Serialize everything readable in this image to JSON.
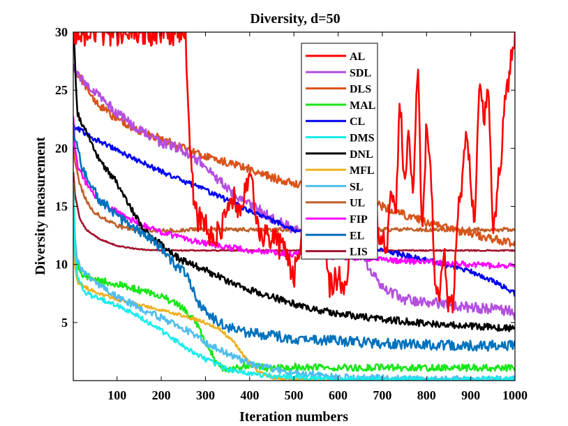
{
  "chart_data": {
    "type": "line",
    "title": "Diversity, d=50",
    "xlabel": "Iteration numbers",
    "ylabel": "Diversity measurement",
    "xlim": [
      1,
      1000
    ],
    "ylim": [
      0,
      30
    ],
    "xticks": [
      100,
      200,
      300,
      400,
      500,
      600,
      700,
      800,
      900,
      1000
    ],
    "yticks": [
      5,
      10,
      15,
      20,
      25,
      30
    ],
    "legend_position": "top-right (inside)",
    "series": [
      {
        "name": "AL",
        "color": "#ff0000",
        "noise": 1.2,
        "x": [
          1,
          30,
          80,
          110,
          140,
          160,
          180,
          200,
          220,
          240,
          255,
          265,
          270,
          280,
          300,
          320,
          340,
          360,
          380,
          400,
          420,
          440,
          460,
          480,
          500,
          520,
          540,
          560,
          580,
          600,
          620,
          640,
          660,
          680,
          690,
          700,
          710,
          720,
          730,
          740,
          750,
          760,
          770,
          780,
          790,
          800,
          810,
          820,
          830,
          840,
          850,
          860,
          870,
          880,
          890,
          900,
          910,
          920,
          930,
          940,
          950,
          960,
          970,
          980,
          990,
          1000
        ],
        "y": [
          30,
          30,
          30,
          30,
          30,
          30,
          30,
          30,
          30,
          30,
          30,
          20,
          17,
          14,
          13.5,
          12,
          13.5,
          16,
          14,
          18,
          13,
          12.5,
          12,
          11,
          9,
          12,
          13,
          18,
          8,
          9,
          8,
          19,
          14,
          21,
          12,
          13,
          10,
          17,
          14,
          24,
          17,
          22,
          15,
          27.5,
          12,
          22,
          18,
          8,
          7,
          11,
          6.5,
          7,
          14,
          17,
          22,
          17,
          13,
          27,
          22,
          25,
          13,
          16,
          20,
          25,
          27,
          30
        ]
      },
      {
        "name": "SDL",
        "color": "#b44fe0",
        "noise": 0.45,
        "x": [
          1,
          10,
          30,
          60,
          100,
          150,
          200,
          250,
          300,
          350,
          400,
          450,
          500,
          550,
          600,
          650,
          700,
          750,
          800,
          850,
          900,
          950,
          990,
          1000
        ],
        "y": [
          27,
          26.5,
          25.5,
          24.5,
          23,
          21.5,
          20.5,
          19.8,
          18.5,
          16.5,
          15.2,
          14,
          13,
          12.5,
          12,
          11,
          8,
          7,
          6.8,
          6.5,
          6.3,
          6.2,
          6,
          5.5
        ]
      },
      {
        "name": "DLS",
        "color": "#d95319",
        "noise": 0.35,
        "x": [
          1,
          10,
          50,
          100,
          150,
          200,
          250,
          300,
          350,
          400,
          450,
          500,
          550,
          600,
          650,
          700,
          750,
          800,
          850,
          900,
          950,
          1000
        ],
        "y": [
          27,
          26.5,
          24,
          22.5,
          21.5,
          20.8,
          20,
          19.3,
          18.8,
          18.2,
          17.5,
          17,
          16.7,
          16.2,
          15.6,
          15,
          14.3,
          13.6,
          13.1,
          12.6,
          12.2,
          11.8
        ]
      },
      {
        "name": "MAL",
        "color": "#19e619",
        "noise": 0.3,
        "x": [
          1,
          5,
          10,
          20,
          50,
          100,
          150,
          200,
          250,
          280,
          300,
          330,
          350,
          380,
          400,
          450,
          500,
          600,
          700,
          800,
          900,
          1000
        ],
        "y": [
          17,
          12,
          10,
          9,
          8.7,
          8.3,
          7.8,
          7.3,
          6.2,
          5,
          3.2,
          1.3,
          0.8,
          1.2,
          1.4,
          1,
          1.2,
          1.1,
          1.1,
          1.1,
          1.1,
          1.1
        ]
      },
      {
        "name": "CL",
        "color": "#0000ee",
        "noise": 0.22,
        "x": [
          1,
          5,
          20,
          50,
          100,
          150,
          200,
          250,
          300,
          350,
          400,
          450,
          500,
          550,
          600,
          650,
          700,
          750,
          800,
          850,
          900,
          950,
          1000
        ],
        "y": [
          22,
          21.8,
          21.5,
          20.8,
          19.8,
          18.9,
          18,
          17.2,
          16.4,
          15.5,
          14.6,
          13.8,
          13,
          12.5,
          12,
          11.7,
          11.2,
          10.8,
          10.4,
          9.9,
          9.4,
          8.6,
          7.5
        ]
      },
      {
        "name": "DMS",
        "color": "#19ecec",
        "noise": 0.22,
        "x": [
          1,
          5,
          10,
          30,
          60,
          100,
          150,
          200,
          250,
          300,
          350,
          400,
          450,
          500,
          550,
          600,
          700,
          800,
          900,
          1000
        ],
        "y": [
          16,
          11,
          9,
          7.5,
          7,
          6.5,
          5.5,
          4.3,
          3,
          1.8,
          1,
          0.6,
          0.4,
          0.3,
          0.2,
          0.1,
          0.1,
          0.1,
          0.1,
          0.1
        ]
      },
      {
        "name": "DNL",
        "color": "#000000",
        "noise": 0.3,
        "x": [
          1,
          3,
          10,
          30,
          60,
          100,
          130,
          160,
          190,
          220,
          250,
          300,
          350,
          400,
          450,
          500,
          550,
          600,
          650,
          700,
          750,
          800,
          850,
          900,
          950,
          1000
        ],
        "y": [
          30,
          29,
          23,
          21.5,
          19,
          17,
          15,
          13,
          12,
          11,
          10.3,
          9.5,
          8.6,
          7.8,
          7.2,
          6.6,
          6.1,
          5.8,
          5.5,
          5.3,
          5.1,
          4.9,
          4.8,
          4.7,
          4.6,
          4.5
        ]
      },
      {
        "name": "MFL",
        "color": "#edb120",
        "noise": 0.15,
        "x": [
          1,
          5,
          10,
          30,
          60,
          100,
          150,
          200,
          250,
          300,
          330,
          360,
          380,
          400,
          420,
          450,
          480,
          500,
          550,
          600,
          700,
          800,
          900,
          1000
        ],
        "y": [
          15,
          10,
          8.5,
          8,
          7.5,
          7,
          6.5,
          6.1,
          5.6,
          5,
          4.5,
          3.5,
          2.5,
          1.5,
          0.8,
          0.3,
          0.15,
          0.1,
          0.05,
          0,
          0,
          0,
          0,
          0
        ]
      },
      {
        "name": "SL",
        "color": "#4dbeee",
        "noise": 0.3,
        "x": [
          1,
          5,
          10,
          20,
          50,
          100,
          150,
          200,
          250,
          300,
          350,
          400,
          450,
          500,
          550,
          600,
          700,
          800,
          900,
          1000
        ],
        "y": [
          16,
          12,
          10.5,
          9.5,
          8.5,
          7.2,
          6.3,
          5.4,
          4.5,
          3.3,
          2.3,
          1.5,
          1,
          0.7,
          0.5,
          0.3,
          0.2,
          0.1,
          0.1,
          0.1
        ]
      },
      {
        "name": "UL",
        "color": "#c0602a",
        "noise": 0.18,
        "x": [
          1,
          5,
          15,
          30,
          50,
          80,
          100,
          150,
          200,
          300,
          400,
          500,
          600,
          700,
          800,
          900,
          1000
        ],
        "y": [
          20,
          19,
          17,
          15.5,
          14.5,
          13.7,
          13.3,
          13,
          12.9,
          13,
          13,
          13,
          13,
          13,
          13,
          13,
          13
        ]
      },
      {
        "name": "FIP",
        "color": "#ff00ff",
        "noise": 0.25,
        "x": [
          1,
          5,
          10,
          30,
          60,
          100,
          150,
          200,
          250,
          300,
          350,
          400,
          450,
          500,
          550,
          600,
          650,
          700,
          750,
          800,
          850,
          900,
          950,
          1000
        ],
        "y": [
          23,
          20,
          18.5,
          17,
          15.5,
          14.5,
          13.5,
          12.8,
          12.2,
          11.8,
          11.5,
          11.2,
          11,
          10.9,
          10.8,
          10.6,
          10.5,
          10.4,
          10.3,
          10.2,
          10.1,
          10,
          9.9,
          9.9
        ]
      },
      {
        "name": "EL",
        "color": "#0072bd",
        "noise": 0.45,
        "x": [
          1,
          3,
          10,
          20,
          40,
          60,
          80,
          100,
          130,
          160,
          200,
          230,
          260,
          280,
          300,
          330,
          360,
          380,
          400,
          450,
          500,
          550,
          600,
          700,
          800,
          900,
          1000
        ],
        "y": [
          22,
          21,
          20,
          18.5,
          17,
          15.5,
          15,
          14,
          13.5,
          12.5,
          11.5,
          10,
          9,
          7,
          6,
          5,
          4.5,
          4.2,
          4.1,
          3.9,
          3.6,
          3.5,
          3.4,
          3.2,
          3.1,
          3,
          3
        ]
      },
      {
        "name": "LIS",
        "color": "#a2142f",
        "noise": 0.05,
        "x": [
          1,
          5,
          15,
          30,
          60,
          100,
          150,
          200,
          250,
          300,
          400,
          500,
          600,
          700,
          800,
          900,
          1000
        ],
        "y": [
          18,
          16,
          14,
          13,
          12.2,
          11.6,
          11.3,
          11.2,
          11.2,
          11.2,
          11.2,
          11.2,
          11.2,
          11.2,
          11.2,
          11.2,
          11.2
        ]
      }
    ]
  }
}
